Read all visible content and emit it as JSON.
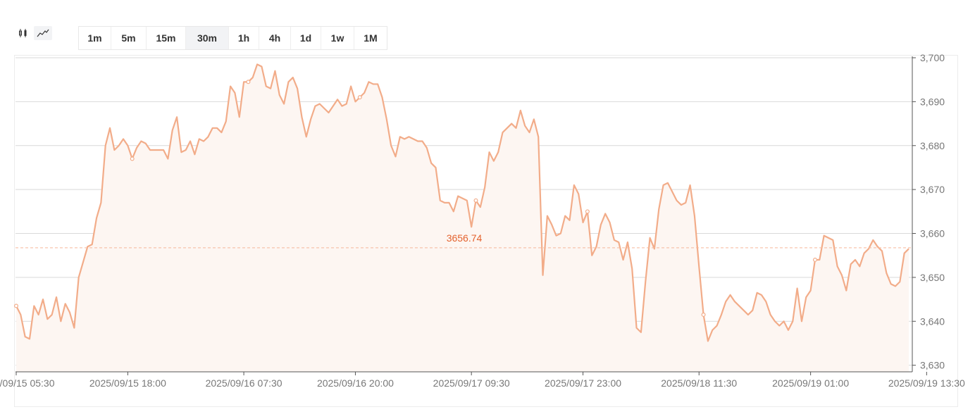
{
  "toolbar": {
    "chart_types": [
      {
        "name": "candlestick-icon",
        "active": false
      },
      {
        "name": "line-chart-icon",
        "active": true
      }
    ],
    "intervals": [
      {
        "label": "1m",
        "active": false
      },
      {
        "label": "5m",
        "active": false
      },
      {
        "label": "15m",
        "active": false
      },
      {
        "label": "30m",
        "active": true
      },
      {
        "label": "1h",
        "active": false
      },
      {
        "label": "4h",
        "active": false
      },
      {
        "label": "1d",
        "active": false
      },
      {
        "label": "1w",
        "active": false
      },
      {
        "label": "1M",
        "active": false
      }
    ]
  },
  "colors": {
    "line": "#f2ac89",
    "area": "#fdf6f2",
    "last_price_line": "#f6b89a",
    "last_price_text": "#e4622e",
    "grid": "#d9d9d9",
    "axis_text": "#777777"
  },
  "chart_data": {
    "type": "line",
    "title": "",
    "xlabel": "",
    "ylabel": "",
    "y_ticks": [
      3630,
      3640,
      3650,
      3660,
      3670,
      3680,
      3690,
      3700
    ],
    "y_tick_labels": [
      "3,630",
      "3,640",
      "3,650",
      "3,660",
      "3,670",
      "3,680",
      "3,690",
      "3,700"
    ],
    "ylim": [
      3628.5,
      3700
    ],
    "x_ticks": [
      {
        "index": 0,
        "label": "2025/09/15 05:30"
      },
      {
        "index": 25,
        "label": "2025/09/15 18:00"
      },
      {
        "index": 51,
        "label": "2025/09/16 07:30"
      },
      {
        "index": 76,
        "label": "2025/09/16 20:00"
      },
      {
        "index": 102,
        "label": "2025/09/17 09:30"
      },
      {
        "index": 127,
        "label": "2025/09/17 23:00"
      },
      {
        "index": 153,
        "label": "2025/09/18 11:30"
      },
      {
        "index": 178,
        "label": "2025/09/19 01:00"
      },
      {
        "index": 204,
        "label": "2025/09/19 13:30"
      }
    ],
    "grid": true,
    "last_price": 3656.74,
    "last_price_label": "3656.74",
    "markers": [
      0,
      26,
      52,
      77,
      103,
      128,
      154,
      179,
      205
    ],
    "values": [
      3643.5,
      3641.5,
      3636.5,
      3636,
      3643.5,
      3641.5,
      3645,
      3640.5,
      3641.5,
      3645.5,
      3640,
      3644,
      3642,
      3638.5,
      3650,
      3653.5,
      3657,
      3657.5,
      3663.5,
      3667,
      3680,
      3684,
      3679,
      3680,
      3681.5,
      3680,
      3677,
      3679.5,
      3681,
      3680.5,
      3679,
      3679,
      3679,
      3679,
      3677,
      3683.5,
      3686.5,
      3678.5,
      3679,
      3681,
      3678,
      3681.5,
      3681,
      3682,
      3684,
      3684,
      3683,
      3685.5,
      3693.5,
      3692,
      3686.5,
      3694.5,
      3694.5,
      3695.5,
      3698.5,
      3698,
      3693.5,
      3693,
      3697,
      3691.5,
      3689.5,
      3694.5,
      3695.5,
      3693,
      3686.5,
      3682,
      3686,
      3689,
      3689.5,
      3688.5,
      3687.5,
      3689,
      3690.5,
      3689,
      3689.5,
      3693.5,
      3690,
      3691,
      3692,
      3694.5,
      3694,
      3694,
      3691,
      3686,
      3680,
      3677.5,
      3682,
      3681.5,
      3682,
      3681.5,
      3681,
      3681,
      3679.5,
      3676,
      3675,
      3667.5,
      3667,
      3667,
      3665,
      3668.5,
      3668,
      3667.5,
      3661.5,
      3667.5,
      3666,
      3670.5,
      3678.5,
      3676.5,
      3678.5,
      3683,
      3684,
      3685,
      3684,
      3688,
      3684.5,
      3683,
      3686,
      3682,
      3650.5,
      3664,
      3662,
      3659.5,
      3660,
      3664,
      3663,
      3671,
      3669,
      3662.5,
      3665,
      3655,
      3657,
      3662,
      3664.5,
      3662.5,
      3658.5,
      3658,
      3654,
      3658,
      3652,
      3638.5,
      3637.5,
      3649,
      3659,
      3656.5,
      3665.5,
      3671,
      3671.5,
      3669.5,
      3667.5,
      3666.5,
      3667,
      3671,
      3664,
      3652.5,
      3641.5,
      3635.5,
      3638,
      3639,
      3641.5,
      3644.5,
      3646,
      3644.5,
      3643.5,
      3642.5,
      3641.5,
      3642.5,
      3646.5,
      3646,
      3644.5,
      3641.5,
      3640,
      3639,
      3640,
      3638,
      3640,
      3647.5,
      3640,
      3645.5,
      3647,
      3654,
      3654,
      3659.5,
      3659,
      3658.5,
      3652.5,
      3650.5,
      3647,
      3653,
      3654,
      3652.5,
      3655.5,
      3656.5,
      3658.5,
      3657,
      3656,
      3651,
      3648.5,
      3648,
      3649,
      3655.5,
      3656.5
    ]
  }
}
